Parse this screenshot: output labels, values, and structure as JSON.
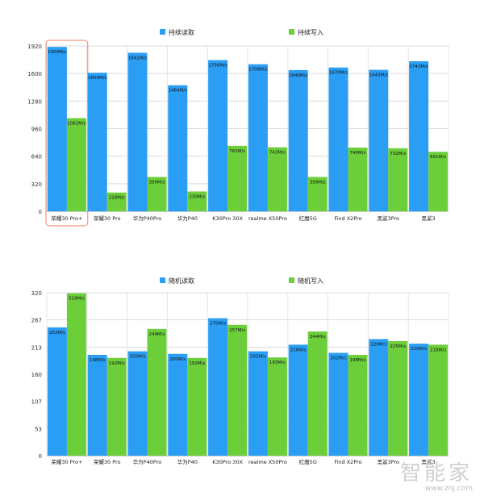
{
  "chart_data": [
    {
      "type": "bar",
      "title": "",
      "xlabel": "",
      "ylabel": "",
      "categories": [
        "荣耀30 Pro+",
        "荣耀30 Pro",
        "华为P40Pro",
        "华为P40",
        "K30Pro 30X",
        "realme X50Pro",
        "红魔5G",
        "Find X2Pro",
        "黑鲨3Pro",
        "黑鲨3"
      ],
      "series": [
        {
          "name": "持续读取",
          "color": "#2a9df4",
          "values": [
            1909,
            1609,
            1841,
            1464,
            1756,
            1708,
            1640,
            1670,
            1643,
            1743
          ],
          "labels": [
            "1909M/s",
            "1609M/s",
            "1841M/s",
            "1464M/s",
            "1756M/s",
            "1708M/s",
            "1640M/s",
            "1670M/s",
            "1643M/s",
            "1743M/s"
          ]
        },
        {
          "name": "持续写入",
          "color": "#6ccf3a",
          "values": [
            1082,
            218,
            399,
            230,
            760,
            743,
            399,
            740,
            732,
            691
          ],
          "labels": [
            "1082M/s",
            "218M/s",
            "399M/s",
            "230M/s",
            "760M/s",
            "743M/s",
            "399M/s",
            "740M/s",
            "732M/s",
            "691M/s"
          ]
        }
      ],
      "ylim": [
        0,
        1920
      ],
      "yticks": [
        0,
        320,
        640,
        960,
        1280,
        1600,
        1920
      ],
      "grid": true,
      "legend": "top-center",
      "highlight_category": "荣耀30 Pro+",
      "highlight_color": "#f0826b"
    },
    {
      "type": "bar",
      "title": "",
      "xlabel": "",
      "ylabel": "",
      "categories": [
        "荣耀30 Pro+",
        "荣耀30 Pro",
        "华为P40Pro",
        "华为P40",
        "K30Pro 30X",
        "realme X50Pro",
        "红魔5G",
        "Find X2Pro",
        "黑鲨3Pro",
        "黑鲨3"
      ],
      "series": [
        {
          "name": "随机读取",
          "color": "#2a9df4",
          "values": [
            252,
            198,
            205,
            200,
            270,
            205,
            218,
            202,
            229,
            220
          ],
          "labels": [
            "252M/s",
            "198M/s",
            "205M/s",
            "200M/s",
            "270M/s",
            "205M/s",
            "218M/s",
            "202M/s",
            "229M/s",
            "220M/s"
          ]
        },
        {
          "name": "随机写入",
          "color": "#6ccf3a",
          "values": [
            319,
            192,
            249,
            192,
            257,
            193,
            244,
            198,
            225,
            218
          ],
          "labels": [
            "319M/s",
            "192M/s",
            "249M/s",
            "192M/s",
            "257M/s",
            "193M/s",
            "244M/s",
            "198M/s",
            "225M/s",
            "218M/s"
          ]
        }
      ],
      "ylim": [
        0,
        320
      ],
      "yticks": [
        0,
        53,
        107,
        160,
        213,
        267,
        320
      ],
      "grid": true,
      "legend": "top-center"
    }
  ],
  "watermark": {
    "main": "智能家",
    "url": "www.znj.com"
  }
}
